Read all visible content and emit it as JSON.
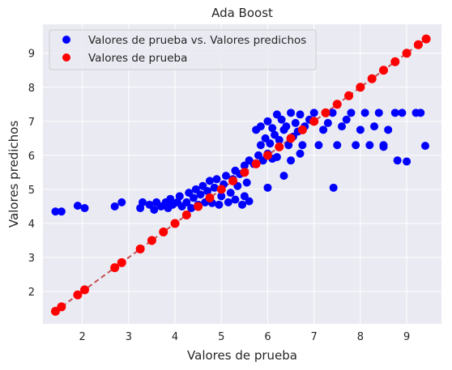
{
  "chart_data": {
    "type": "scatter",
    "title": "Ada Boost",
    "xlabel": "Valores de prueba",
    "ylabel": "Valores predichos",
    "xlim": [
      1.15,
      9.75
    ],
    "ylim": [
      1.05,
      9.85
    ],
    "xticks": [
      "2",
      "3",
      "4",
      "5",
      "6",
      "7",
      "8",
      "9"
    ],
    "yticks": [
      "2",
      "3",
      "4",
      "5",
      "6",
      "7",
      "8",
      "9"
    ],
    "grid": true,
    "legend_position": "top-left",
    "background": "#eaeaf2",
    "series": [
      {
        "name": "Valores de prueba vs. Valores predichos",
        "color": "#0000ff",
        "points": [
          [
            1.42,
            4.35
          ],
          [
            1.55,
            4.35
          ],
          [
            1.9,
            4.52
          ],
          [
            2.05,
            4.45
          ],
          [
            2.7,
            4.5
          ],
          [
            2.85,
            4.62
          ],
          [
            3.25,
            4.45
          ],
          [
            3.3,
            4.62
          ],
          [
            3.45,
            4.55
          ],
          [
            3.55,
            4.4
          ],
          [
            3.6,
            4.62
          ],
          [
            3.7,
            4.5
          ],
          [
            3.8,
            4.62
          ],
          [
            3.85,
            4.45
          ],
          [
            3.9,
            4.72
          ],
          [
            3.95,
            4.55
          ],
          [
            4.05,
            4.62
          ],
          [
            4.1,
            4.8
          ],
          [
            4.15,
            4.5
          ],
          [
            4.25,
            4.62
          ],
          [
            4.3,
            4.9
          ],
          [
            4.35,
            4.45
          ],
          [
            4.4,
            4.75
          ],
          [
            4.45,
            5.0
          ],
          [
            4.5,
            4.55
          ],
          [
            4.55,
            4.85
          ],
          [
            4.6,
            5.1
          ],
          [
            4.65,
            4.62
          ],
          [
            4.7,
            4.95
          ],
          [
            4.75,
            5.25
          ],
          [
            4.8,
            4.6
          ],
          [
            4.85,
            5.05
          ],
          [
            4.9,
            5.3
          ],
          [
            4.95,
            4.55
          ],
          [
            5.0,
            4.8
          ],
          [
            5.05,
            5.15
          ],
          [
            5.1,
            5.4
          ],
          [
            5.15,
            4.62
          ],
          [
            5.2,
            4.9
          ],
          [
            5.25,
            5.3
          ],
          [
            5.3,
            4.7
          ],
          [
            5.35,
            5.1
          ],
          [
            5.4,
            5.45
          ],
          [
            5.45,
            4.55
          ],
          [
            5.5,
            4.8
          ],
          [
            5.55,
            5.2
          ],
          [
            5.6,
            4.65
          ],
          [
            5.3,
            5.55
          ],
          [
            5.5,
            5.7
          ],
          [
            5.6,
            5.85
          ],
          [
            5.7,
            5.75
          ],
          [
            5.8,
            6.0
          ],
          [
            5.9,
            5.85
          ],
          [
            6.0,
            6.05
          ],
          [
            6.1,
            5.9
          ],
          [
            6.2,
            5.95
          ],
          [
            5.85,
            6.3
          ],
          [
            5.95,
            6.5
          ],
          [
            6.05,
            6.35
          ],
          [
            6.15,
            6.6
          ],
          [
            6.25,
            6.45
          ],
          [
            6.35,
            6.75
          ],
          [
            6.45,
            6.3
          ],
          [
            6.55,
            6.55
          ],
          [
            6.65,
            6.7
          ],
          [
            6.75,
            6.3
          ],
          [
            5.75,
            6.75
          ],
          [
            5.85,
            6.85
          ],
          [
            6.0,
            7.0
          ],
          [
            6.1,
            6.8
          ],
          [
            6.2,
            7.2
          ],
          [
            6.3,
            7.05
          ],
          [
            6.4,
            6.85
          ],
          [
            6.5,
            7.25
          ],
          [
            6.6,
            6.95
          ],
          [
            6.7,
            7.2
          ],
          [
            6.8,
            6.85
          ],
          [
            6.9,
            7.05
          ],
          [
            7.0,
            7.25
          ],
          [
            7.1,
            6.3
          ],
          [
            7.2,
            6.75
          ],
          [
            7.3,
            6.95
          ],
          [
            7.4,
            7.25
          ],
          [
            7.5,
            6.3
          ],
          [
            7.6,
            6.85
          ],
          [
            7.7,
            7.05
          ],
          [
            7.8,
            7.25
          ],
          [
            7.9,
            6.3
          ],
          [
            8.0,
            6.75
          ],
          [
            8.1,
            7.25
          ],
          [
            8.2,
            6.3
          ],
          [
            8.3,
            6.85
          ],
          [
            8.4,
            7.25
          ],
          [
            8.5,
            6.3
          ],
          [
            8.6,
            6.75
          ],
          [
            8.75,
            7.25
          ],
          [
            8.8,
            5.85
          ],
          [
            8.9,
            7.25
          ],
          [
            9.0,
            5.82
          ],
          [
            9.2,
            7.25
          ],
          [
            9.3,
            7.25
          ],
          [
            9.4,
            6.28
          ],
          [
            7.42,
            5.05
          ],
          [
            6.5,
            5.85
          ],
          [
            6.35,
            5.4
          ],
          [
            6.0,
            5.05
          ],
          [
            6.7,
            6.05
          ],
          [
            8.5,
            6.25
          ]
        ]
      },
      {
        "name": "Valores de prueba",
        "color": "#ff0000",
        "points": [
          [
            1.42,
            1.42
          ],
          [
            1.55,
            1.55
          ],
          [
            1.9,
            1.9
          ],
          [
            2.05,
            2.05
          ],
          [
            2.7,
            2.7
          ],
          [
            2.85,
            2.85
          ],
          [
            3.25,
            3.25
          ],
          [
            3.5,
            3.5
          ],
          [
            3.75,
            3.75
          ],
          [
            4.0,
            4.0
          ],
          [
            4.25,
            4.25
          ],
          [
            4.5,
            4.5
          ],
          [
            4.75,
            4.75
          ],
          [
            5.0,
            5.0
          ],
          [
            5.25,
            5.25
          ],
          [
            5.5,
            5.5
          ],
          [
            5.75,
            5.75
          ],
          [
            6.0,
            6.0
          ],
          [
            6.25,
            6.25
          ],
          [
            6.5,
            6.5
          ],
          [
            6.75,
            6.75
          ],
          [
            7.0,
            7.0
          ],
          [
            7.25,
            7.25
          ],
          [
            7.5,
            7.5
          ],
          [
            7.75,
            7.75
          ],
          [
            8.0,
            8.0
          ],
          [
            8.25,
            8.25
          ],
          [
            8.5,
            8.5
          ],
          [
            8.75,
            8.75
          ],
          [
            9.0,
            9.0
          ],
          [
            9.25,
            9.25
          ],
          [
            9.42,
            9.42
          ]
        ]
      }
    ],
    "reference_line": {
      "from": [
        1.42,
        1.42
      ],
      "to": [
        9.42,
        9.42
      ],
      "style": "dashed",
      "color": "#c44e52"
    }
  }
}
